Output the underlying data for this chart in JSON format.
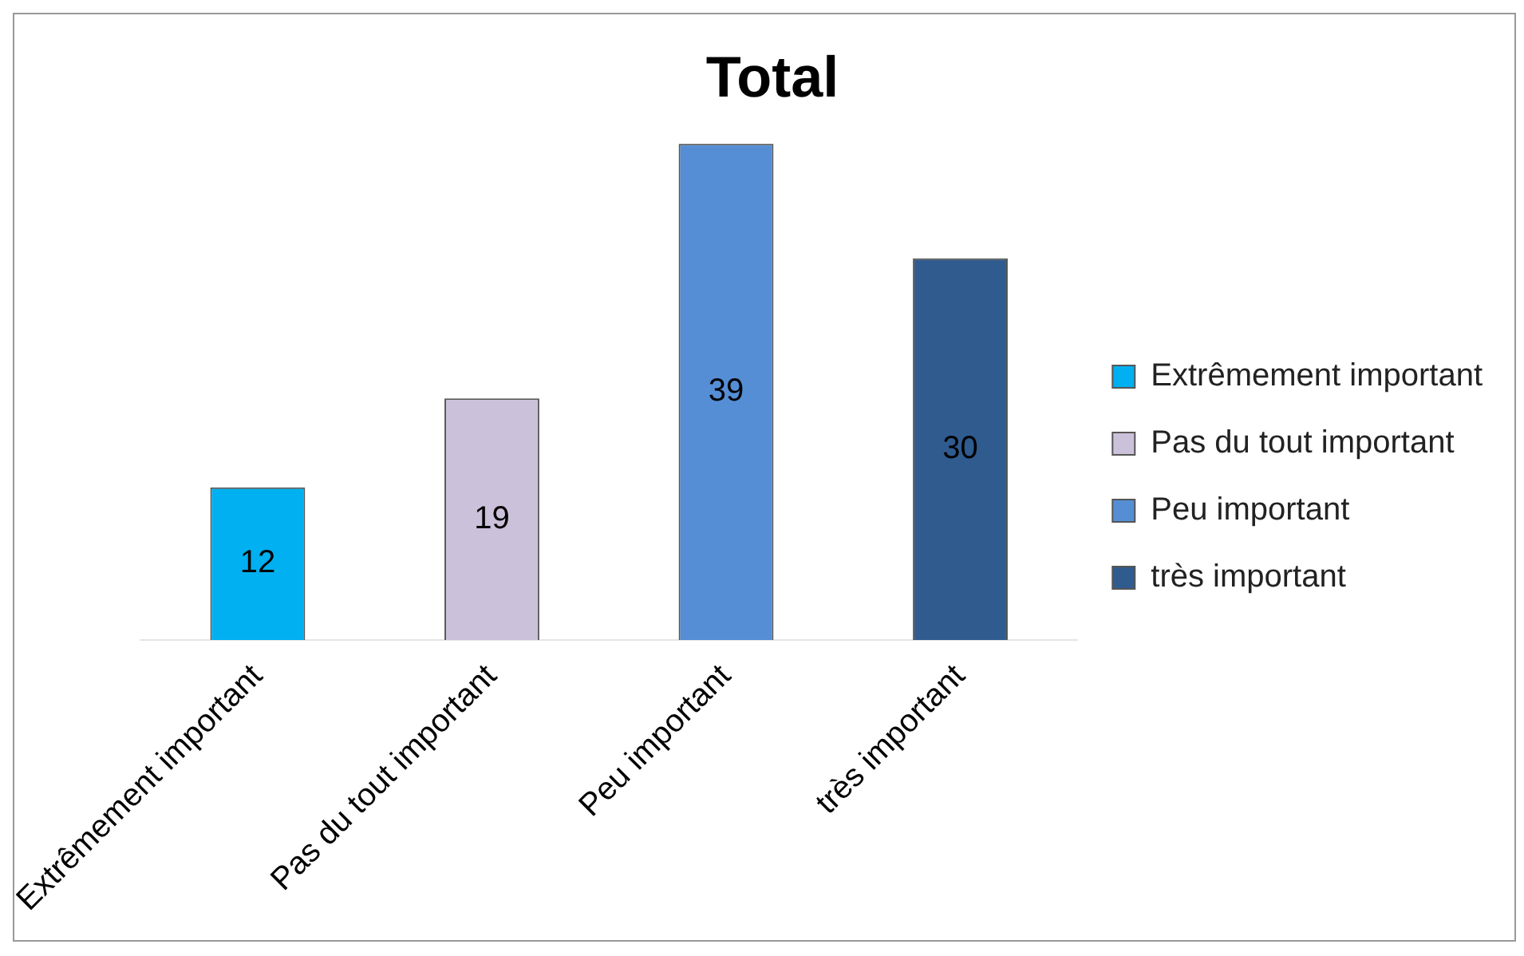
{
  "chart_data": {
    "type": "bar",
    "title": "Total",
    "categories": [
      "Extrêmement important",
      "Pas du tout important",
      "Peu important",
      "très important"
    ],
    "series": [
      {
        "name": "Extrêmement important",
        "color": "#00b0f0",
        "values": [
          12,
          null,
          null,
          null
        ]
      },
      {
        "name": "Pas du tout important",
        "color": "#ccc1da",
        "values": [
          null,
          19,
          null,
          null
        ]
      },
      {
        "name": "Peu important",
        "color": "#558ed5",
        "values": [
          null,
          null,
          39,
          null
        ]
      },
      {
        "name": "très important",
        "color": "#2f5b8f",
        "values": [
          null,
          null,
          null,
          30
        ]
      }
    ],
    "data_labels": true,
    "legend": "right",
    "grid": false
  }
}
